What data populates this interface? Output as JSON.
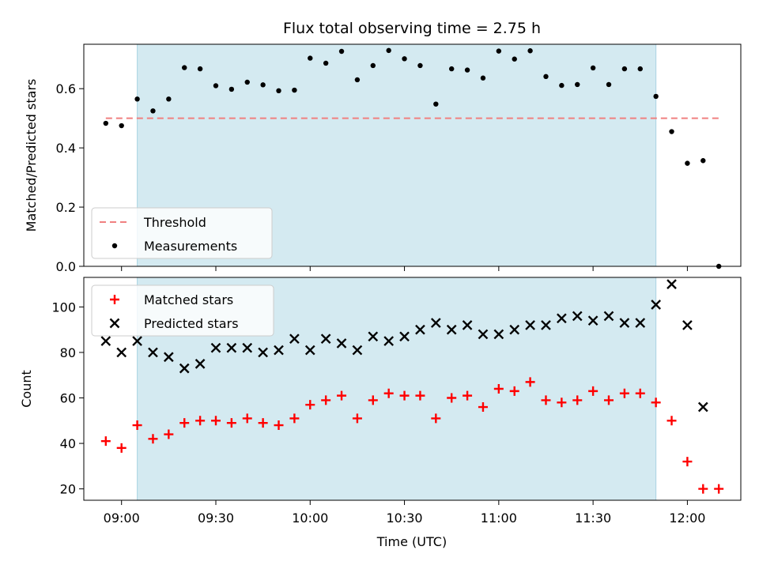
{
  "chart_data": {
    "title": "Flux total observing time = 2.75 h",
    "xlabel": "Time (UTC)",
    "x_ticks": [
      "09:00",
      "09:30",
      "10:00",
      "10:30",
      "11:00",
      "11:30",
      "12:00"
    ],
    "shaded_interval": [
      "09:05",
      "11:50"
    ],
    "shade_color": "#d4eaf1",
    "panels": [
      {
        "type": "scatter",
        "ylabel": "Matched/Predicted stars",
        "ylim": [
          0,
          0.75
        ],
        "yticks": [
          "0.0",
          "0.2",
          "0.4",
          "0.6"
        ],
        "legend_position": "lower-left",
        "threshold": {
          "name": "Threshold",
          "value": 0.5,
          "x": [
            "08:55",
            "12:10"
          ],
          "color": "#f08080",
          "style": "dashed"
        },
        "series": [
          {
            "name": "Measurements",
            "marker": "dot",
            "color": "#000000",
            "points": [
              [
                "08:55",
                0.483
              ],
              [
                "09:00",
                0.475
              ],
              [
                "09:05",
                0.565
              ],
              [
                "09:10",
                0.525
              ],
              [
                "09:15",
                0.565
              ],
              [
                "09:20",
                0.671
              ],
              [
                "09:25",
                0.667
              ],
              [
                "09:30",
                0.61
              ],
              [
                "09:35",
                0.598
              ],
              [
                "09:40",
                0.622
              ],
              [
                "09:45",
                0.613
              ],
              [
                "09:50",
                0.593
              ],
              [
                "09:55",
                0.595
              ],
              [
                "10:00",
                0.703
              ],
              [
                "10:05",
                0.686
              ],
              [
                "10:10",
                0.726
              ],
              [
                "10:15",
                0.63
              ],
              [
                "10:20",
                0.678
              ],
              [
                "10:25",
                0.729
              ],
              [
                "10:30",
                0.701
              ],
              [
                "10:35",
                0.678
              ],
              [
                "10:40",
                0.548
              ],
              [
                "10:45",
                0.667
              ],
              [
                "10:50",
                0.663
              ],
              [
                "10:55",
                0.636
              ],
              [
                "11:00",
                0.727
              ],
              [
                "11:05",
                0.7
              ],
              [
                "11:10",
                0.728
              ],
              [
                "11:15",
                0.641
              ],
              [
                "11:20",
                0.611
              ],
              [
                "11:25",
                0.614
              ],
              [
                "11:30",
                0.67
              ],
              [
                "11:35",
                0.614
              ],
              [
                "11:40",
                0.667
              ],
              [
                "11:45",
                0.667
              ],
              [
                "11:50",
                0.574
              ],
              [
                "11:55",
                0.455
              ],
              [
                "12:00",
                0.348
              ],
              [
                "12:05",
                0.357
              ],
              [
                "12:10",
                0.0
              ]
            ]
          }
        ]
      },
      {
        "type": "scatter",
        "ylabel": "Count",
        "ylim": [
          15,
          113
        ],
        "yticks": [
          "20",
          "40",
          "60",
          "80",
          "100"
        ],
        "legend_position": "upper-left",
        "series": [
          {
            "name": "Matched stars",
            "marker": "plus",
            "color": "#ff0000",
            "points": [
              [
                "08:55",
                41
              ],
              [
                "09:00",
                38
              ],
              [
                "09:05",
                48
              ],
              [
                "09:10",
                42
              ],
              [
                "09:15",
                44
              ],
              [
                "09:20",
                49
              ],
              [
                "09:25",
                50
              ],
              [
                "09:30",
                50
              ],
              [
                "09:35",
                49
              ],
              [
                "09:40",
                51
              ],
              [
                "09:45",
                49
              ],
              [
                "09:50",
                48
              ],
              [
                "09:55",
                51
              ],
              [
                "10:00",
                57
              ],
              [
                "10:05",
                59
              ],
              [
                "10:10",
                61
              ],
              [
                "10:15",
                51
              ],
              [
                "10:20",
                59
              ],
              [
                "10:25",
                62
              ],
              [
                "10:30",
                61
              ],
              [
                "10:35",
                61
              ],
              [
                "10:40",
                51
              ],
              [
                "10:45",
                60
              ],
              [
                "10:50",
                61
              ],
              [
                "10:55",
                56
              ],
              [
                "11:00",
                64
              ],
              [
                "11:05",
                63
              ],
              [
                "11:10",
                67
              ],
              [
                "11:15",
                59
              ],
              [
                "11:20",
                58
              ],
              [
                "11:25",
                59
              ],
              [
                "11:30",
                63
              ],
              [
                "11:35",
                59
              ],
              [
                "11:40",
                62
              ],
              [
                "11:45",
                62
              ],
              [
                "11:50",
                58
              ],
              [
                "11:55",
                50
              ],
              [
                "12:00",
                32
              ],
              [
                "12:05",
                20
              ],
              [
                "12:10",
                20
              ]
            ]
          },
          {
            "name": "Predicted stars",
            "marker": "x",
            "color": "#000000",
            "points": [
              [
                "08:55",
                85
              ],
              [
                "09:00",
                80
              ],
              [
                "09:05",
                85
              ],
              [
                "09:10",
                80
              ],
              [
                "09:15",
                78
              ],
              [
                "09:20",
                73
              ],
              [
                "09:25",
                75
              ],
              [
                "09:30",
                82
              ],
              [
                "09:35",
                82
              ],
              [
                "09:40",
                82
              ],
              [
                "09:45",
                80
              ],
              [
                "09:50",
                81
              ],
              [
                "09:55",
                86
              ],
              [
                "10:00",
                81
              ],
              [
                "10:05",
                86
              ],
              [
                "10:10",
                84
              ],
              [
                "10:15",
                81
              ],
              [
                "10:20",
                87
              ],
              [
                "10:25",
                85
              ],
              [
                "10:30",
                87
              ],
              [
                "10:35",
                90
              ],
              [
                "10:40",
                93
              ],
              [
                "10:45",
                90
              ],
              [
                "10:50",
                92
              ],
              [
                "10:55",
                88
              ],
              [
                "11:00",
                88
              ],
              [
                "11:05",
                90
              ],
              [
                "11:10",
                92
              ],
              [
                "11:15",
                92
              ],
              [
                "11:20",
                95
              ],
              [
                "11:25",
                96
              ],
              [
                "11:30",
                94
              ],
              [
                "11:35",
                96
              ],
              [
                "11:40",
                93
              ],
              [
                "11:45",
                93
              ],
              [
                "11:50",
                101
              ],
              [
                "11:55",
                110
              ],
              [
                "12:00",
                92
              ],
              [
                "12:05",
                56
              ]
            ]
          }
        ]
      }
    ]
  }
}
